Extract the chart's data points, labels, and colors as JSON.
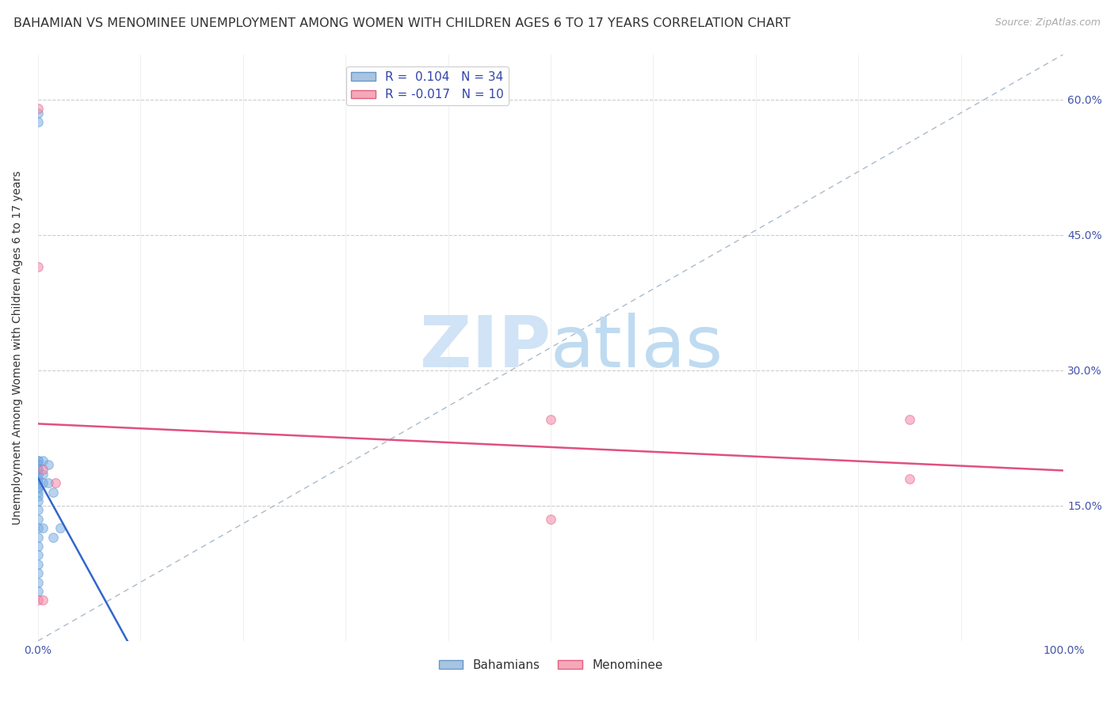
{
  "title": "BAHAMIAN VS MENOMINEE UNEMPLOYMENT AMONG WOMEN WITH CHILDREN AGES 6 TO 17 YEARS CORRELATION CHART",
  "source": "Source: ZipAtlas.com",
  "ylabel": "Unemployment Among Women with Children Ages 6 to 17 years",
  "xlim": [
    0,
    1.0
  ],
  "ylim": [
    0,
    0.65
  ],
  "ytick_positions": [
    0.15,
    0.3,
    0.45,
    0.6
  ],
  "ytick_labels": [
    "15.0%",
    "30.0%",
    "45.0%",
    "60.0%"
  ],
  "legend_entries": [
    {
      "label": "R =  0.104   N = 34",
      "color_face": "#a8c4e0",
      "color_edge": "#6699cc"
    },
    {
      "label": "R = -0.017   N = 10",
      "color_face": "#f4a8b8",
      "color_edge": "#e06080"
    }
  ],
  "bahamians_x": [
    0.0,
    0.0,
    0.0,
    0.0,
    0.0,
    0.0,
    0.0,
    0.0,
    0.0,
    0.0,
    0.0,
    0.0,
    0.0,
    0.0,
    0.0,
    0.0,
    0.0,
    0.0,
    0.0,
    0.0,
    0.0,
    0.0,
    0.0,
    0.0,
    0.0,
    0.005,
    0.005,
    0.005,
    0.005,
    0.01,
    0.01,
    0.015,
    0.015,
    0.022
  ],
  "bahamians_y": [
    0.585,
    0.575,
    0.2,
    0.2,
    0.195,
    0.19,
    0.19,
    0.185,
    0.18,
    0.175,
    0.17,
    0.17,
    0.165,
    0.16,
    0.155,
    0.145,
    0.135,
    0.125,
    0.115,
    0.105,
    0.095,
    0.085,
    0.075,
    0.065,
    0.055,
    0.2,
    0.185,
    0.175,
    0.125,
    0.195,
    0.175,
    0.165,
    0.115,
    0.125
  ],
  "menominee_x": [
    0.0,
    0.0,
    0.0,
    0.005,
    0.005,
    0.017,
    0.5,
    0.5,
    0.85,
    0.85
  ],
  "menominee_y": [
    0.59,
    0.415,
    0.045,
    0.19,
    0.045,
    0.175,
    0.245,
    0.135,
    0.245,
    0.18
  ],
  "bahamians_color": "#7aafe8",
  "bahamians_edge": "#6699cc",
  "menominee_color": "#f48aaa",
  "menominee_edge": "#e06080",
  "blue_line_color": "#3366cc",
  "pink_line_color": "#e05080",
  "marker_size": 70,
  "alpha": 0.55,
  "background_color": "#ffffff",
  "grid_color": "#cccccc",
  "diagonal_color": "#aabbcc",
  "title_fontsize": 11.5,
  "axis_label_fontsize": 10,
  "tick_fontsize": 10,
  "legend_fontsize": 11,
  "source_fontsize": 9,
  "watermark_zip_color": "#cce0f5",
  "watermark_atlas_color": "#b8d8f0",
  "watermark_fontsize": 65
}
